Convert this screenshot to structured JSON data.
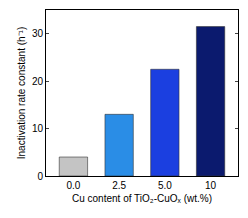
{
  "chart_data": {
    "type": "bar",
    "x_label": "Cu content of TiO₂-CuOₓ (wt.%)",
    "y_label": "Inactivation rate constant (h⁻¹)",
    "categories": [
      "0.0",
      "2.5",
      "5.0",
      "10"
    ],
    "values": [
      4,
      13,
      22.5,
      31.5
    ],
    "colors": [
      "#c4c4c4",
      "#2a8de6",
      "#1b3fe0",
      "#0b1a6e"
    ],
    "ylim": [
      0,
      35
    ],
    "yticks": [
      0,
      10,
      20,
      30
    ],
    "grid": false
  }
}
